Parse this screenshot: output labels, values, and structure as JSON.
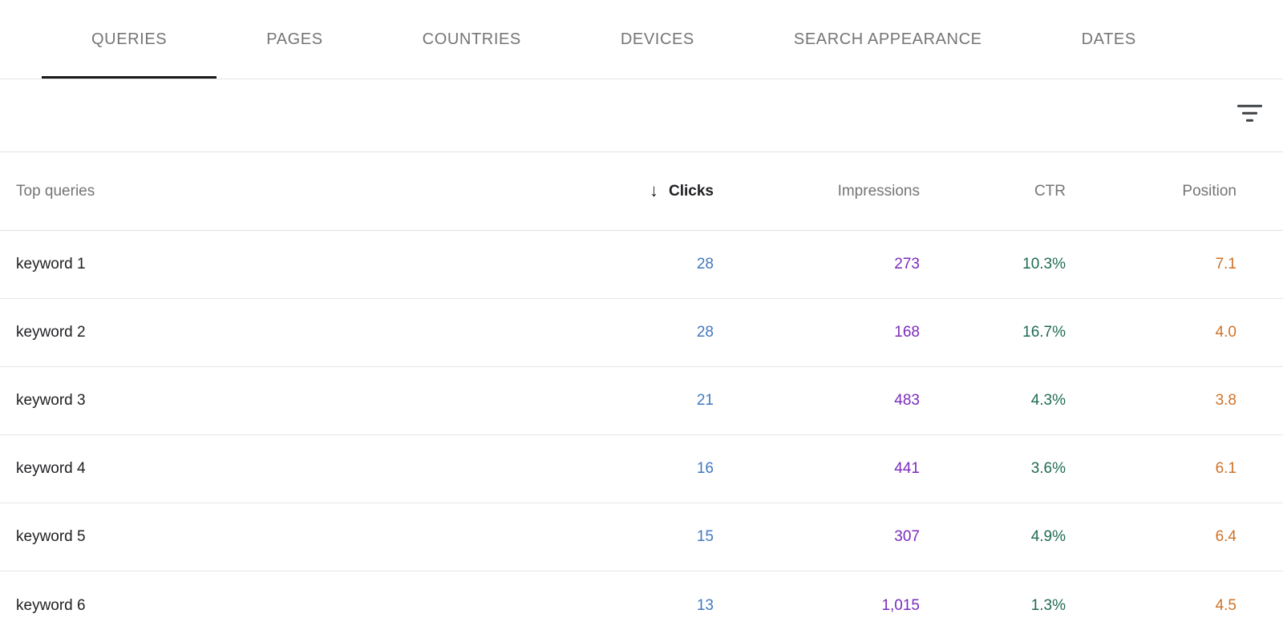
{
  "tabs": [
    {
      "label": "QUERIES",
      "active": true
    },
    {
      "label": "PAGES",
      "active": false
    },
    {
      "label": "COUNTRIES",
      "active": false
    },
    {
      "label": "DEVICES",
      "active": false
    },
    {
      "label": "SEARCH APPEARANCE",
      "active": false
    },
    {
      "label": "DATES",
      "active": false
    }
  ],
  "toolbar": {
    "filter_icon": "filter-list-icon"
  },
  "table": {
    "columns": {
      "query": "Top queries",
      "clicks": "Clicks",
      "impressions": "Impressions",
      "ctr": "CTR",
      "position": "Position"
    },
    "sort": {
      "column": "clicks",
      "direction": "desc",
      "arrow": "↓"
    },
    "rows": [
      {
        "query": "keyword 1",
        "clicks": "28",
        "impressions": "273",
        "ctr": "10.3%",
        "position": "7.1"
      },
      {
        "query": "keyword 2",
        "clicks": "28",
        "impressions": "168",
        "ctr": "16.7%",
        "position": "4.0"
      },
      {
        "query": "keyword 3",
        "clicks": "21",
        "impressions": "483",
        "ctr": "4.3%",
        "position": "3.8"
      },
      {
        "query": "keyword 4",
        "clicks": "16",
        "impressions": "441",
        "ctr": "3.6%",
        "position": "6.1"
      },
      {
        "query": "keyword 5",
        "clicks": "15",
        "impressions": "307",
        "ctr": "4.9%",
        "position": "6.4"
      },
      {
        "query": "keyword 6",
        "clicks": "13",
        "impressions": "1,015",
        "ctr": "1.3%",
        "position": "4.5"
      }
    ]
  },
  "colors": {
    "clicks": "#4379bd",
    "impressions": "#7b2cbd",
    "ctr": "#1f6b54",
    "position": "#ce7228",
    "active_tab_underline": "#1a1a1a",
    "inactive_tab_text": "#757575",
    "header_text": "#757575",
    "body_text": "#202124"
  }
}
